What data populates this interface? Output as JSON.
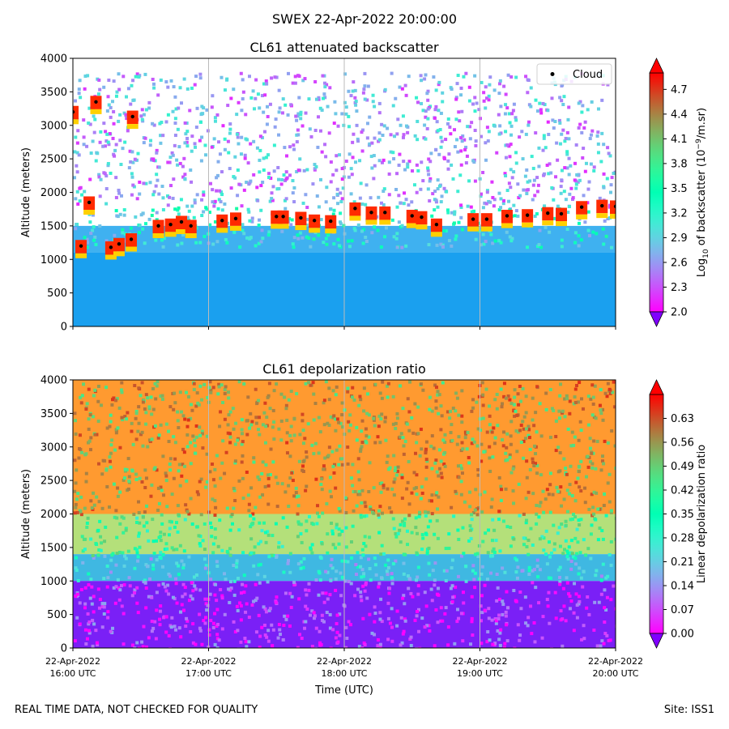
{
  "figure": {
    "suptitle": "SWEX 22-Apr-2022 20:00:00",
    "footer_left": "REAL TIME DATA, NOT CHECKED FOR QUALITY",
    "footer_right": "Site: ISS1"
  },
  "chart_data": [
    {
      "type": "heatmap",
      "title": "CL61 attenuated backscatter",
      "xlabel": "",
      "ylabel": "Altitude (meters)",
      "ylim": [
        0,
        4000
      ],
      "y_ticks": [
        0,
        500,
        1000,
        1500,
        2000,
        2500,
        3000,
        3500,
        4000
      ],
      "x_ticks": [
        "16:00",
        "17:00",
        "18:00",
        "19:00",
        "20:00"
      ],
      "x_tick_labels": [],
      "colorbar": {
        "label_prefix": "Log",
        "label_sub": "10",
        "label_mid": " of backscatter (10",
        "label_sup": "−9",
        "label_suffix": "/m.sr)",
        "range": [
          2.0,
          4.9
        ],
        "ticks": [
          "2.0",
          "2.3",
          "2.6",
          "2.9",
          "3.2",
          "3.5",
          "3.8",
          "4.1",
          "4.4",
          "4.7"
        ],
        "extend": "both",
        "colormap": "rainbow"
      },
      "legend": {
        "entries": [
          "Cloud"
        ],
        "marker": "black-dot",
        "position": "top-right"
      },
      "cloud_base": [
        {
          "t": 0.0,
          "alt": 3200
        },
        {
          "t": 0.06,
          "alt": 1200
        },
        {
          "t": 0.12,
          "alt": 1850
        },
        {
          "t": 0.17,
          "alt": 3350
        },
        {
          "t": 0.28,
          "alt": 1180
        },
        {
          "t": 0.34,
          "alt": 1230
        },
        {
          "t": 0.43,
          "alt": 1300
        },
        {
          "t": 0.44,
          "alt": 3130
        },
        {
          "t": 0.63,
          "alt": 1500
        },
        {
          "t": 0.72,
          "alt": 1520
        },
        {
          "t": 0.8,
          "alt": 1560
        },
        {
          "t": 0.87,
          "alt": 1500
        },
        {
          "t": 1.1,
          "alt": 1580
        },
        {
          "t": 1.2,
          "alt": 1610
        },
        {
          "t": 1.5,
          "alt": 1640
        },
        {
          "t": 1.55,
          "alt": 1640
        },
        {
          "t": 1.68,
          "alt": 1620
        },
        {
          "t": 1.78,
          "alt": 1580
        },
        {
          "t": 1.9,
          "alt": 1570
        },
        {
          "t": 2.08,
          "alt": 1760
        },
        {
          "t": 2.2,
          "alt": 1700
        },
        {
          "t": 2.3,
          "alt": 1700
        },
        {
          "t": 2.5,
          "alt": 1650
        },
        {
          "t": 2.57,
          "alt": 1630
        },
        {
          "t": 2.68,
          "alt": 1520
        },
        {
          "t": 2.95,
          "alt": 1600
        },
        {
          "t": 3.05,
          "alt": 1600
        },
        {
          "t": 3.2,
          "alt": 1650
        },
        {
          "t": 3.35,
          "alt": 1660
        },
        {
          "t": 3.5,
          "alt": 1690
        },
        {
          "t": 3.6,
          "alt": 1680
        },
        {
          "t": 3.75,
          "alt": 1780
        },
        {
          "t": 3.9,
          "alt": 1800
        },
        {
          "t": 4.0,
          "alt": 1790
        }
      ]
    },
    {
      "type": "heatmap",
      "title": "CL61 depolarization ratio",
      "xlabel": "Time (UTC)",
      "ylabel": "Altitude (meters)",
      "ylim": [
        0,
        4000
      ],
      "y_ticks": [
        0,
        500,
        1000,
        1500,
        2000,
        2500,
        3000,
        3500,
        4000
      ],
      "x_ticks": [
        "16:00",
        "17:00",
        "18:00",
        "19:00",
        "20:00"
      ],
      "x_tick_labels": [
        [
          "22-Apr-2022",
          "16:00 UTC"
        ],
        [
          "22-Apr-2022",
          "17:00 UTC"
        ],
        [
          "22-Apr-2022",
          "18:00 UTC"
        ],
        [
          "22-Apr-2022",
          "19:00 UTC"
        ],
        [
          "22-Apr-2022",
          "20:00 UTC"
        ]
      ],
      "colorbar": {
        "label": "Linear depolarization ratio",
        "range": [
          0.0,
          0.7
        ],
        "ticks": [
          "0.00",
          "0.07",
          "0.14",
          "0.21",
          "0.28",
          "0.35",
          "0.42",
          "0.49",
          "0.56",
          "0.63"
        ],
        "extend": "both",
        "colormap": "rainbow"
      }
    }
  ]
}
